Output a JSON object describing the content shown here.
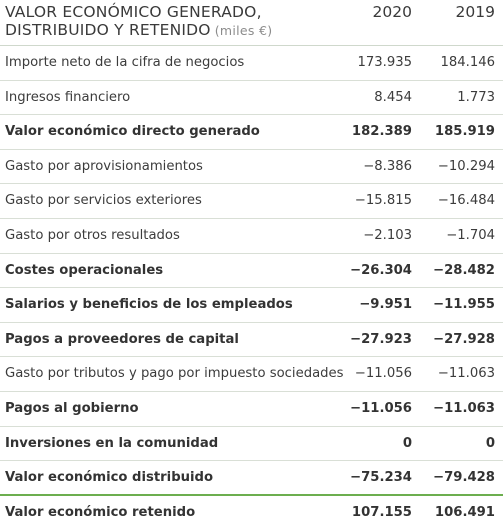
{
  "table": {
    "title_line1": "VALOR ECONÓMICO GENERADO,",
    "title_line2": "DISTRIBUIDO Y RETENIDO",
    "unit": "(miles €)",
    "col_2020": "2020",
    "col_2019": "2019",
    "rows": [
      {
        "label": "Importe neto de la cifra de negocios",
        "v2020": "173.935",
        "v2019": "184.146"
      },
      {
        "label": "Ingresos financiero",
        "v2020": "8.454",
        "v2019": "1.773"
      },
      {
        "label": "Valor económico directo generado",
        "v2020": "182.389",
        "v2019": "185.919"
      },
      {
        "label": "Gasto por aprovisionamientos",
        "v2020": "−8.386",
        "v2019": "−10.294"
      },
      {
        "label": "Gasto por servicios exteriores",
        "v2020": "−15.815",
        "v2019": "−16.484"
      },
      {
        "label": "Gasto por otros resultados",
        "v2020": "−2.103",
        "v2019": "−1.704"
      },
      {
        "label": "Costes operacionales",
        "v2020": "−26.304",
        "v2019": "−28.482"
      },
      {
        "label": "Salarios y beneficios de los empleados",
        "v2020": "−9.951",
        "v2019": "−11.955"
      },
      {
        "label": "Pagos a proveedores de capital",
        "v2020": "−27.923",
        "v2019": "−27.928"
      },
      {
        "label": "Gasto por tributos y pago por impuesto sociedades",
        "v2020": "−11.056",
        "v2019": "−11.063"
      },
      {
        "label": "Pagos al gobierno",
        "v2020": "−11.056",
        "v2019": "−11.063"
      },
      {
        "label": "Inversiones en la comunidad",
        "v2020": "0",
        "v2019": "0"
      },
      {
        "label": "Valor económico distribuido",
        "v2020": "−75.234",
        "v2019": "−79.428"
      },
      {
        "label": "Valor económico retenido",
        "v2020": "107.155",
        "v2019": "106.491"
      }
    ]
  }
}
